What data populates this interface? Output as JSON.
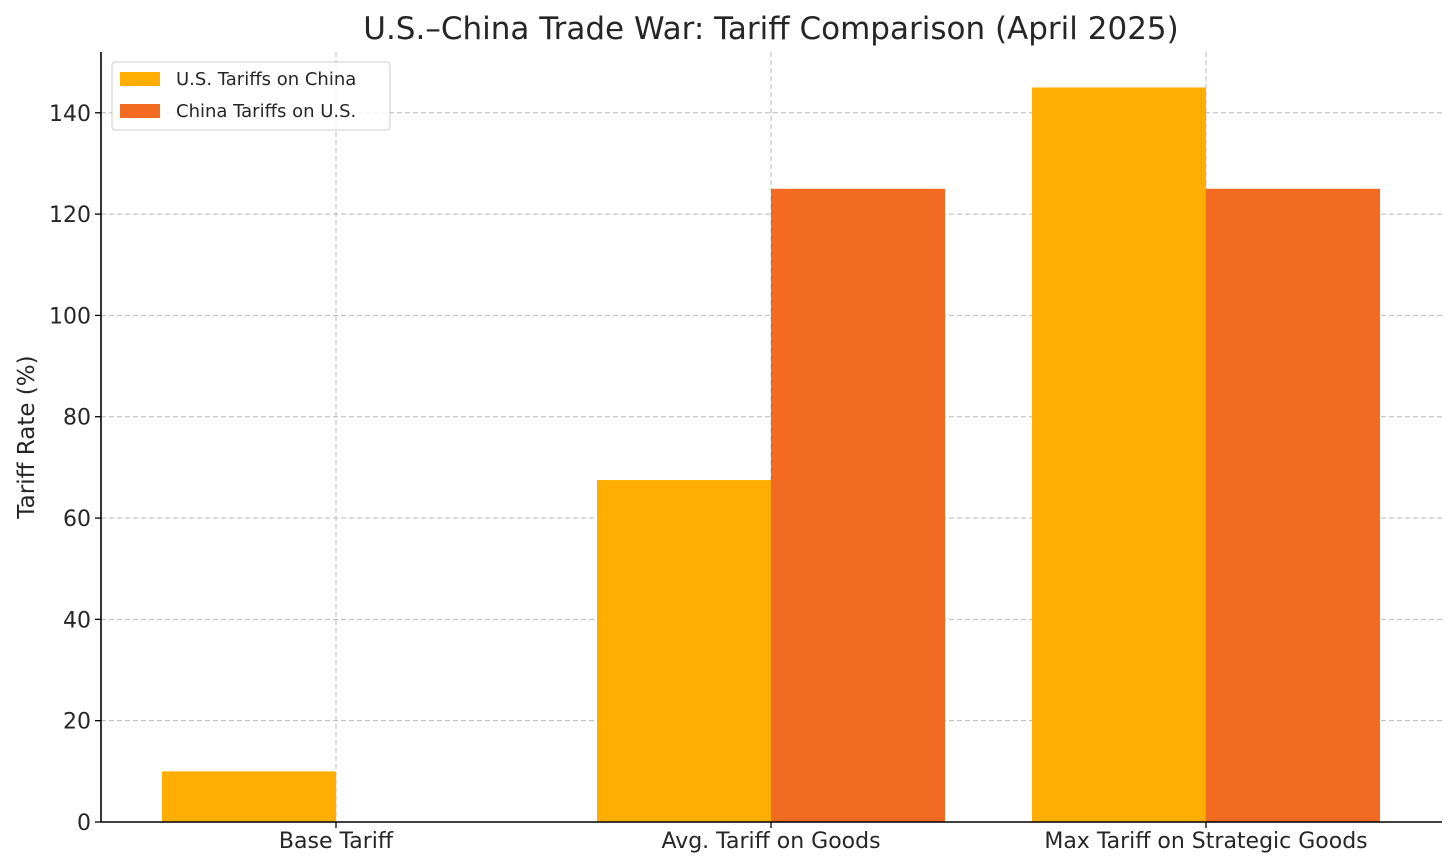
{
  "chart_data": {
    "type": "bar",
    "title": "U.S.–China Trade War: Tariff Comparison (April 2025)",
    "xlabel": "",
    "ylabel": "Tariff Rate (%)",
    "categories": [
      "Base Tariff",
      "Avg. Tariff on Goods",
      "Max Tariff on Strategic Goods"
    ],
    "series": [
      {
        "name": "U.S. Tariffs on China",
        "values": [
          10,
          67.5,
          145
        ],
        "color": "#FFAE00"
      },
      {
        "name": "China Tariffs on U.S.",
        "values": [
          0,
          125,
          125
        ],
        "color": "#F26B21"
      }
    ],
    "ylim": [
      0,
      152
    ],
    "yticks": [
      0,
      20,
      40,
      60,
      80,
      100,
      120,
      140
    ],
    "grid": true,
    "legend_position": "top-left"
  }
}
